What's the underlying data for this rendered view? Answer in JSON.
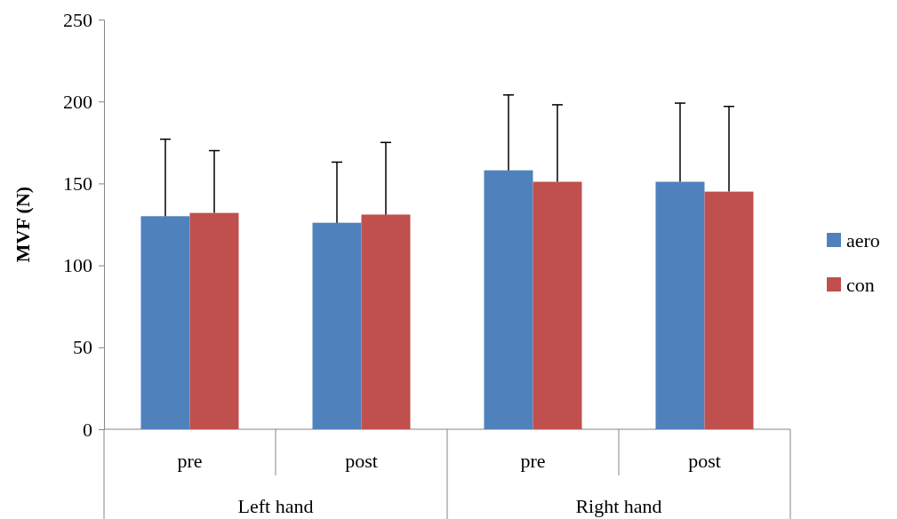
{
  "chart_data": {
    "type": "bar",
    "ylabel": "MVF (N)",
    "categories": [
      "pre",
      "post",
      "pre",
      "post"
    ],
    "series": [
      {
        "name": "aero",
        "color": "#4f81bd",
        "values": [
          130,
          126,
          158,
          151
        ],
        "errors": [
          [
            130,
            177
          ],
          [
            126,
            163
          ],
          [
            158,
            204
          ],
          [
            151,
            199
          ]
        ]
      },
      {
        "name": "con",
        "color": "#c0504d",
        "values": [
          132,
          131,
          151,
          145
        ],
        "errors": [
          [
            132,
            170
          ],
          [
            131,
            175
          ],
          [
            151,
            198
          ],
          [
            145,
            197
          ]
        ]
      }
    ],
    "annotations": [
      "Left hand",
      "Right hand"
    ],
    "ylim": [
      0,
      250
    ],
    "yticks": [
      0,
      50,
      100,
      150,
      200,
      250
    ],
    "grid": false,
    "legend": "right"
  }
}
